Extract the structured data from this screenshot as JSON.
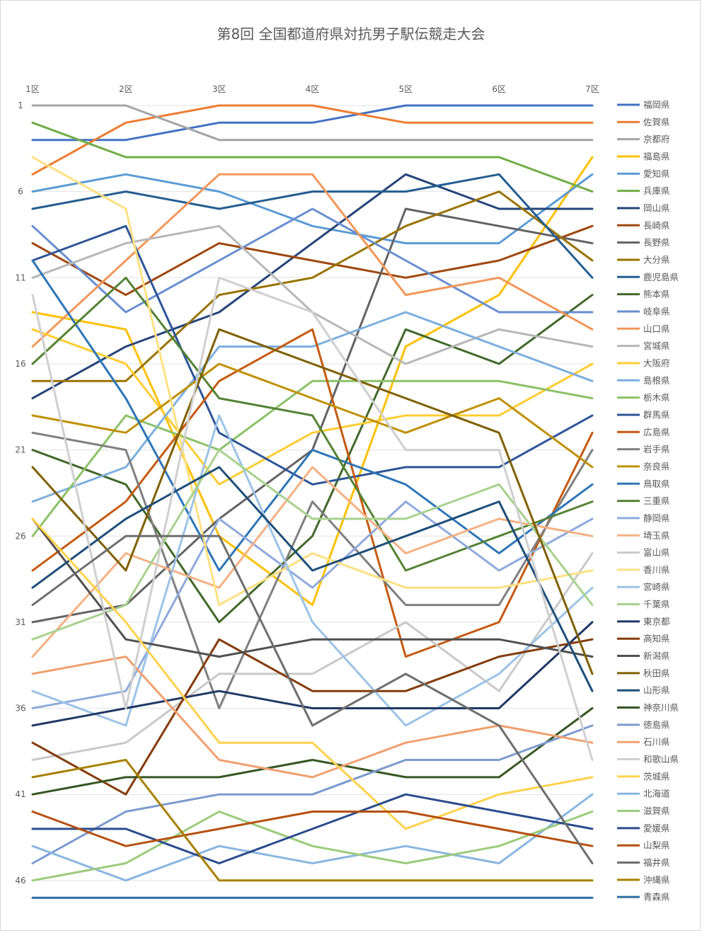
{
  "chart_data": {
    "type": "line",
    "title": "第8回 全国都道府県対抗男子駅伝競走大会",
    "categories": [
      "1区",
      "2区",
      "3区",
      "4区",
      "5区",
      "6区",
      "7区"
    ],
    "y_ticks": [
      1,
      6,
      11,
      16,
      21,
      26,
      31,
      36,
      41,
      46
    ],
    "ylim": [
      1,
      47
    ],
    "y_reversed": true,
    "grid": true,
    "legend_position": "right",
    "series": [
      {
        "name": "福岡県",
        "color": "#4472C4",
        "values": [
          3,
          3,
          2,
          2,
          1,
          1,
          1
        ]
      },
      {
        "name": "佐賀県",
        "color": "#ED7D31",
        "values": [
          5,
          2,
          1,
          1,
          2,
          2,
          2
        ]
      },
      {
        "name": "京都府",
        "color": "#A5A5A5",
        "values": [
          1,
          1,
          3,
          3,
          3,
          3,
          3
        ]
      },
      {
        "name": "福島県",
        "color": "#FFC000",
        "values": [
          13,
          14,
          26,
          30,
          15,
          12,
          4
        ]
      },
      {
        "name": "愛知県",
        "color": "#5B9BD5",
        "values": [
          6,
          5,
          6,
          8,
          9,
          9,
          5
        ]
      },
      {
        "name": "兵庫県",
        "color": "#70AD47",
        "values": [
          2,
          4,
          4,
          4,
          4,
          4,
          6
        ]
      },
      {
        "name": "岡山県",
        "color": "#264478",
        "values": [
          18,
          15,
          13,
          9,
          5,
          7,
          7
        ]
      },
      {
        "name": "長崎県",
        "color": "#9E480E",
        "values": [
          9,
          12,
          9,
          10,
          11,
          10,
          8
        ]
      },
      {
        "name": "長野県",
        "color": "#636363",
        "values": [
          31,
          30,
          25,
          21,
          7,
          8,
          9
        ]
      },
      {
        "name": "大分県",
        "color": "#997300",
        "values": [
          17,
          17,
          12,
          11,
          8,
          6,
          10
        ]
      },
      {
        "name": "鹿児島県",
        "color": "#255E91",
        "values": [
          7,
          6,
          7,
          6,
          6,
          5,
          11
        ]
      },
      {
        "name": "熊本県",
        "color": "#43682B",
        "values": [
          21,
          23,
          31,
          26,
          14,
          16,
          12
        ]
      },
      {
        "name": "岐阜県",
        "color": "#698ED0",
        "values": [
          8,
          13,
          10,
          7,
          10,
          13,
          13
        ]
      },
      {
        "name": "山口県",
        "color": "#F1975A",
        "values": [
          15,
          10,
          5,
          5,
          12,
          11,
          14
        ]
      },
      {
        "name": "宮城県",
        "color": "#B7B7B7",
        "values": [
          11,
          9,
          8,
          13,
          16,
          14,
          15
        ]
      },
      {
        "name": "大阪府",
        "color": "#FFCD33",
        "values": [
          14,
          16,
          23,
          20,
          19,
          19,
          16
        ]
      },
      {
        "name": "島根県",
        "color": "#7CAFDD",
        "values": [
          24,
          22,
          15,
          15,
          13,
          15,
          17
        ]
      },
      {
        "name": "栃木県",
        "color": "#8CC168",
        "values": [
          26,
          19,
          21,
          17,
          17,
          17,
          18
        ]
      },
      {
        "name": "群馬県",
        "color": "#2F5597",
        "values": [
          10,
          8,
          20,
          23,
          22,
          22,
          19
        ]
      },
      {
        "name": "広島県",
        "color": "#C55A11",
        "values": [
          28,
          24,
          17,
          14,
          33,
          31,
          20
        ]
      },
      {
        "name": "岩手県",
        "color": "#7F7F7F",
        "values": [
          20,
          21,
          36,
          24,
          30,
          30,
          21
        ]
      },
      {
        "name": "奈良県",
        "color": "#BF9000",
        "values": [
          19,
          20,
          16,
          18,
          20,
          18,
          22
        ]
      },
      {
        "name": "鳥取県",
        "color": "#2E75B6",
        "values": [
          10,
          18,
          28,
          21,
          23,
          27,
          23
        ]
      },
      {
        "name": "三重県",
        "color": "#548235",
        "values": [
          16,
          11,
          18,
          19,
          28,
          26,
          24
        ]
      },
      {
        "name": "静岡県",
        "color": "#8FAADC",
        "values": [
          36,
          35,
          25,
          29,
          24,
          28,
          25
        ]
      },
      {
        "name": "埼玉県",
        "color": "#F4B183",
        "values": [
          33,
          27,
          29,
          22,
          27,
          25,
          26
        ]
      },
      {
        "name": "富山県",
        "color": "#C9C9C9",
        "values": [
          39,
          38,
          34,
          34,
          31,
          35,
          27
        ]
      },
      {
        "name": "香川県",
        "color": "#FFE082",
        "values": [
          4,
          7,
          30,
          27,
          29,
          29,
          28
        ]
      },
      {
        "name": "宮崎県",
        "color": "#9DC3E6",
        "values": [
          35,
          37,
          19,
          31,
          37,
          34,
          29
        ]
      },
      {
        "name": "千葉県",
        "color": "#A9D18E",
        "values": [
          32,
          30,
          21,
          25,
          25,
          23,
          30
        ]
      },
      {
        "name": "東京都",
        "color": "#203864",
        "values": [
          37,
          36,
          35,
          36,
          36,
          36,
          31
        ]
      },
      {
        "name": "高知県",
        "color": "#843C0C",
        "values": [
          38,
          41,
          32,
          35,
          35,
          33,
          32
        ]
      },
      {
        "name": "新潟県",
        "color": "#505050",
        "values": [
          25,
          32,
          33,
          32,
          32,
          32,
          33
        ]
      },
      {
        "name": "秋田県",
        "color": "#7F6000",
        "values": [
          22,
          28,
          14,
          16,
          18,
          20,
          34
        ]
      },
      {
        "name": "山形県",
        "color": "#1F4E79",
        "values": [
          29,
          25,
          22,
          28,
          26,
          24,
          35
        ]
      },
      {
        "name": "神奈川県",
        "color": "#375623",
        "values": [
          41,
          40,
          40,
          39,
          40,
          40,
          36
        ]
      },
      {
        "name": "徳島県",
        "color": "#7B9ACE",
        "values": [
          45,
          42,
          41,
          41,
          39,
          39,
          37
        ]
      },
      {
        "name": "石川県",
        "color": "#F0A070",
        "values": [
          34,
          33,
          39,
          40,
          38,
          37,
          38
        ]
      },
      {
        "name": "和歌山県",
        "color": "#CFCFCF",
        "values": [
          12,
          36,
          11,
          13,
          21,
          21,
          39
        ]
      },
      {
        "name": "茨城県",
        "color": "#FFD24D",
        "values": [
          25,
          31,
          38,
          38,
          43,
          41,
          40
        ]
      },
      {
        "name": "北海道",
        "color": "#8AB6E0",
        "values": [
          44,
          46,
          44,
          45,
          44,
          45,
          41
        ]
      },
      {
        "name": "滋賀県",
        "color": "#9CCB7A",
        "values": [
          46,
          45,
          42,
          44,
          45,
          44,
          42
        ]
      },
      {
        "name": "愛媛県",
        "color": "#2B4C8C",
        "values": [
          43,
          43,
          45,
          43,
          41,
          42,
          43
        ]
      },
      {
        "name": "山梨県",
        "color": "#B5500F",
        "values": [
          42,
          44,
          43,
          42,
          42,
          43,
          44
        ]
      },
      {
        "name": "福井県",
        "color": "#6E6E6E",
        "values": [
          30,
          26,
          26,
          37,
          34,
          37,
          45
        ]
      },
      {
        "name": "沖縄県",
        "color": "#A88000",
        "values": [
          40,
          39,
          46,
          46,
          46,
          46,
          46
        ]
      },
      {
        "name": "青森県",
        "color": "#2E6DA4",
        "values": [
          47,
          47,
          47,
          47,
          47,
          47,
          47
        ]
      }
    ]
  }
}
